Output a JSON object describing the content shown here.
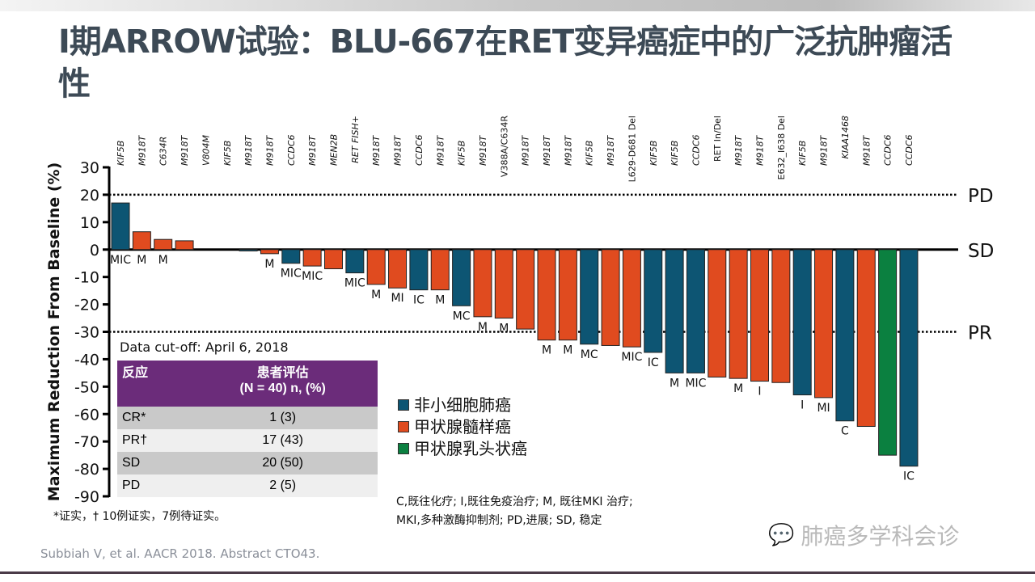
{
  "title": "I期ARROW试验：BLU-667在RET变异癌症中的广泛抗肿瘤活性",
  "colors": {
    "nsclc": "#0d5573",
    "mtc": "#e04b1f",
    "ptc": "#0b8040",
    "table_header": "#6b2c7a"
  },
  "chart_data": {
    "type": "bar",
    "ylabel": "Maximum Reduction From Baseline (%)",
    "ylim": [
      -90,
      30
    ],
    "yticks": [
      30,
      20,
      10,
      0,
      -10,
      -20,
      -30,
      -40,
      -50,
      -60,
      -70,
      -80,
      -90
    ],
    "reference_lines": [
      {
        "value": 20,
        "label": "PD",
        "style": "dotted"
      },
      {
        "value": 0,
        "label": "SD",
        "style": "solid"
      },
      {
        "value": -30,
        "label": "PR",
        "style": "dotted"
      }
    ],
    "categories": [
      "KIF5B",
      "M918T",
      "C634R",
      "M918T",
      "V804M",
      "KIF5B",
      "M918T",
      "M918T",
      "CCDC6",
      "M918T",
      "MEN2B",
      "RET FISH+",
      "M918T",
      "M918T",
      "CCDC6",
      "M918T",
      "KIF5B",
      "M918T",
      "V388A/C634R",
      "M918T",
      "M918T",
      "M918T",
      "KIF5B",
      "M918T",
      "L629-D681 Del",
      "KIF5B",
      "KIF5B",
      "CCDC6",
      "RET In/Del",
      "M918T",
      "M918T",
      "E632_I638 Del",
      "KIF5B",
      "M918T",
      "KIAA1468",
      "M918T",
      "CCDC6",
      "CCDC6"
    ],
    "values": [
      17,
      6.5,
      3.7,
      3.2,
      0,
      0,
      -0.5,
      -1.5,
      -5,
      -6,
      -7,
      -8.5,
      -12.7,
      -14,
      -14.7,
      -14.7,
      -20.5,
      -24.5,
      -25,
      -29,
      -33,
      -33,
      -34.5,
      -35,
      -35.5,
      -37.5,
      -45,
      -45,
      -46.5,
      -47,
      -48,
      -48.5,
      -53,
      -54,
      -62.5,
      -64.5,
      -75,
      -79
    ],
    "tumor_type": [
      "nsclc",
      "mtc",
      "mtc",
      "mtc",
      "mtc",
      "nsclc",
      "nsclc",
      "mtc",
      "nsclc",
      "mtc",
      "mtc",
      "nsclc",
      "mtc",
      "mtc",
      "nsclc",
      "mtc",
      "nsclc",
      "mtc",
      "mtc",
      "mtc",
      "mtc",
      "mtc",
      "nsclc",
      "mtc",
      "mtc",
      "nsclc",
      "nsclc",
      "nsclc",
      "mtc",
      "mtc",
      "mtc",
      "mtc",
      "nsclc",
      "mtc",
      "nsclc",
      "mtc",
      "ptc",
      "nsclc"
    ],
    "prior_therapy": [
      "MIC",
      "M",
      "M",
      "",
      "",
      "",
      "",
      "M",
      "MIC",
      "MIC",
      "",
      "MIC",
      "M",
      "MI",
      "IC",
      "M",
      "MC",
      "M",
      "M",
      "",
      "M",
      "M",
      "MC",
      "",
      "MIC",
      "IC",
      "M",
      "MIC",
      "",
      "M",
      "I",
      "",
      "I",
      "MI",
      "C",
      "",
      "",
      "IC"
    ],
    "legend": [
      {
        "key": "nsclc",
        "label": "非小细胞肺癌"
      },
      {
        "key": "mtc",
        "label": "甲状腺髓样癌"
      },
      {
        "key": "ptc",
        "label": "甲状腺乳头状癌"
      }
    ]
  },
  "cutoff": "Data cut-off: April 6, 2018",
  "table": {
    "headers": [
      "反应",
      "患者评估",
      "(N = 40) n, (%)"
    ],
    "rows": [
      {
        "r": "CR*",
        "v": "1 (3)"
      },
      {
        "r": "PR†",
        "v": "17 (43)"
      },
      {
        "r": "SD",
        "v": "20 (50)"
      },
      {
        "r": "PD",
        "v": "2 (5)"
      }
    ]
  },
  "footnote": "*证实，† 10例证实，7例待证实。",
  "abbreviations": [
    "C,既往化疗; I,既往免疫治疗; M, 既往MKI 治疗;",
    "MKI,多种激酶抑制剂; PD,进展; SD, 稳定"
  ],
  "citation": "Subbiah V, et al. AACR 2018. Abstract CTO43.",
  "watermark": "肺癌多学科会诊"
}
